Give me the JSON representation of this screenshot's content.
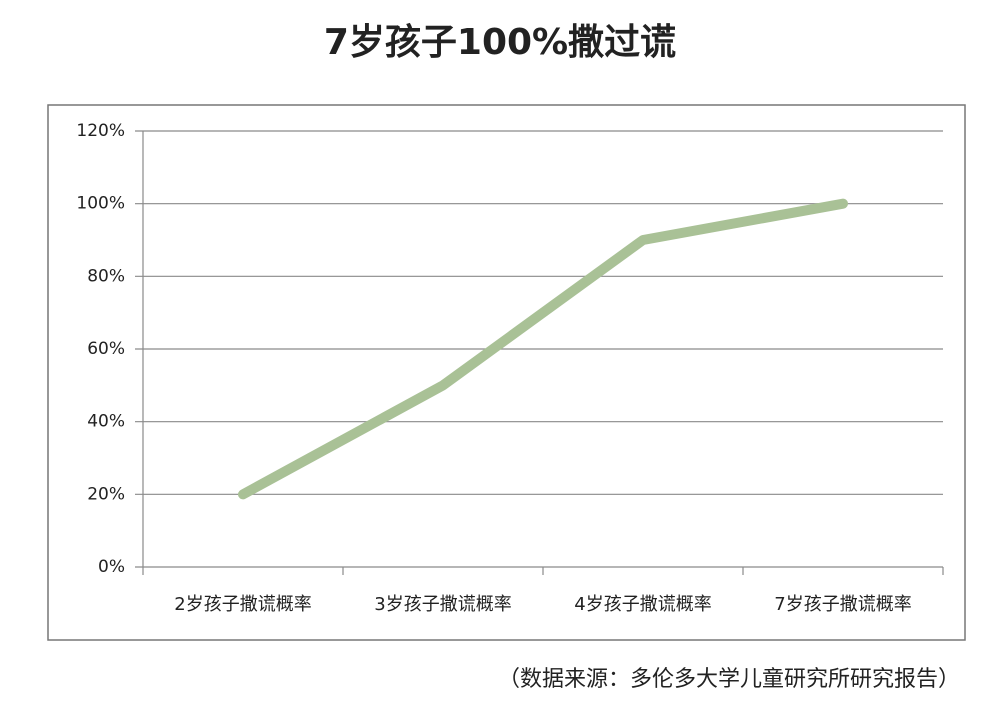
{
  "chart_data": {
    "type": "line",
    "title": "7岁孩子100%撒过谎",
    "note": "（数据来源：多伦多大学儿童研究所研究报告）",
    "categories": [
      "2岁孩子撒谎概率",
      "3岁孩子撒谎概率",
      "4岁孩子撒谎概率",
      "7岁孩子撒谎概率"
    ],
    "values": [
      20,
      50,
      90,
      100
    ],
    "color": "#a9c196",
    "ylim": [
      0,
      120
    ],
    "yticks": [
      {
        "value": 0,
        "label": "0%"
      },
      {
        "value": 20,
        "label": "20%"
      },
      {
        "value": 40,
        "label": "40%"
      },
      {
        "value": 60,
        "label": "60%"
      },
      {
        "value": 80,
        "label": "80%"
      },
      {
        "value": 100,
        "label": "100%"
      },
      {
        "value": 120,
        "label": "120%"
      }
    ],
    "grid": true
  }
}
